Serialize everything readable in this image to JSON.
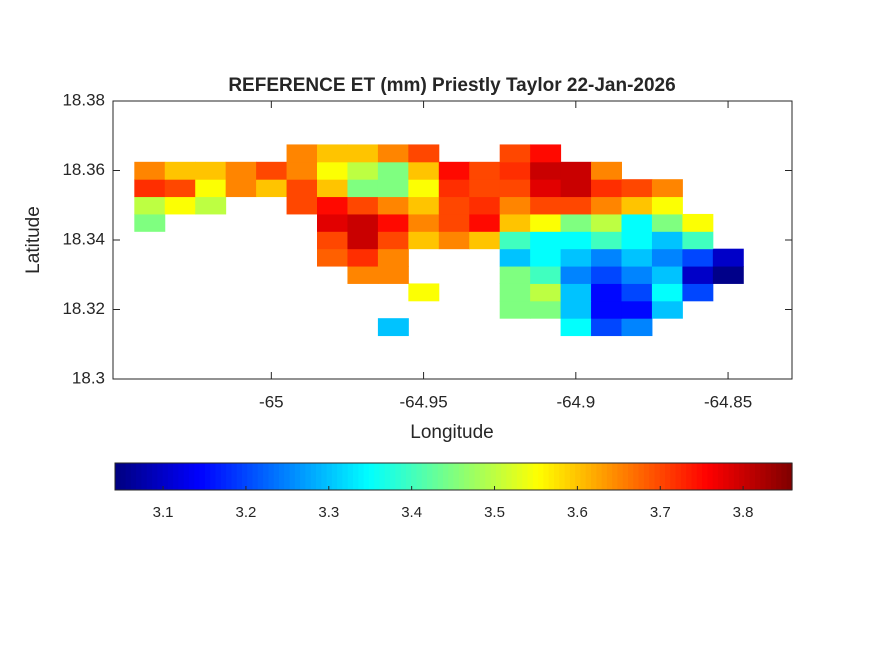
{
  "chart_data": {
    "type": "heatmap",
    "title": "REFERENCE ET (mm) Priestly Taylor 22-Jan-2026",
    "xlabel": "Longitude",
    "ylabel": "Latitude",
    "xlim": [
      -65.052,
      -64.829
    ],
    "xticks": [
      -65,
      -64.95,
      -64.9,
      -64.85
    ],
    "ylim": [
      18.3,
      18.38
    ],
    "yticks": [
      18.3,
      18.32,
      18.34,
      18.36,
      18.38
    ],
    "colormap": "jet",
    "colorbar": {
      "lim": [
        3.042,
        3.859
      ],
      "ticks": [
        3.1,
        3.2,
        3.3,
        3.4,
        3.5,
        3.6,
        3.7,
        3.8
      ]
    },
    "x": [
      -65.04,
      -65.03,
      -65.02,
      -65.01,
      -65.0,
      -64.99,
      -64.98,
      -64.97,
      -64.96,
      -64.95,
      -64.94,
      -64.93,
      -64.92,
      -64.91,
      -64.9,
      -64.89,
      -64.88,
      -64.87,
      -64.86,
      -64.85
    ],
    "y": [
      18.315,
      18.32,
      18.325,
      18.33,
      18.335,
      18.34,
      18.345,
      18.35,
      18.355,
      18.36,
      18.365
    ],
    "z": [
      [
        null,
        null,
        null,
        null,
        null,
        null,
        null,
        null,
        3.3,
        null,
        null,
        null,
        null,
        null,
        3.35,
        3.2,
        3.25,
        null,
        null,
        null
      ],
      [
        null,
        null,
        null,
        null,
        null,
        null,
        null,
        null,
        null,
        null,
        null,
        null,
        3.45,
        3.45,
        3.3,
        3.15,
        3.15,
        3.3,
        null,
        null
      ],
      [
        null,
        null,
        null,
        null,
        null,
        null,
        null,
        null,
        null,
        3.55,
        null,
        null,
        3.45,
        3.5,
        3.3,
        3.15,
        3.2,
        3.35,
        3.2,
        null
      ],
      [
        null,
        null,
        null,
        null,
        null,
        null,
        null,
        3.65,
        3.65,
        null,
        null,
        null,
        3.45,
        3.4,
        3.25,
        3.2,
        3.25,
        3.3,
        3.1,
        3.05
      ],
      [
        null,
        null,
        null,
        null,
        null,
        null,
        3.68,
        3.72,
        3.65,
        null,
        null,
        null,
        3.3,
        3.35,
        3.3,
        3.25,
        3.3,
        3.25,
        3.2,
        3.1
      ],
      [
        null,
        null,
        null,
        null,
        null,
        null,
        3.7,
        3.8,
        3.7,
        3.6,
        3.65,
        3.6,
        3.4,
        3.35,
        3.35,
        3.4,
        3.35,
        3.3,
        3.4,
        null
      ],
      [
        3.45,
        null,
        null,
        null,
        null,
        null,
        3.78,
        3.8,
        3.75,
        3.65,
        3.7,
        3.75,
        3.6,
        3.55,
        3.45,
        3.5,
        3.35,
        3.45,
        3.55,
        null
      ],
      [
        3.5,
        3.55,
        3.5,
        null,
        null,
        3.7,
        3.75,
        3.7,
        3.65,
        3.6,
        3.7,
        3.72,
        3.65,
        3.7,
        3.7,
        3.65,
        3.6,
        3.55,
        null,
        null
      ],
      [
        3.72,
        3.7,
        3.55,
        3.65,
        3.6,
        3.7,
        3.6,
        3.45,
        3.45,
        3.55,
        3.72,
        3.7,
        3.7,
        3.78,
        3.8,
        3.72,
        3.7,
        3.65,
        null,
        null
      ],
      [
        3.65,
        3.6,
        3.6,
        3.65,
        3.7,
        3.65,
        3.55,
        3.5,
        3.45,
        3.6,
        3.75,
        3.7,
        3.72,
        3.8,
        3.8,
        3.65,
        null,
        null,
        null,
        null
      ],
      [
        null,
        null,
        null,
        null,
        null,
        3.65,
        3.6,
        3.6,
        3.65,
        3.7,
        null,
        null,
        3.7,
        3.75,
        null,
        null,
        null,
        null,
        null,
        null
      ]
    ]
  }
}
